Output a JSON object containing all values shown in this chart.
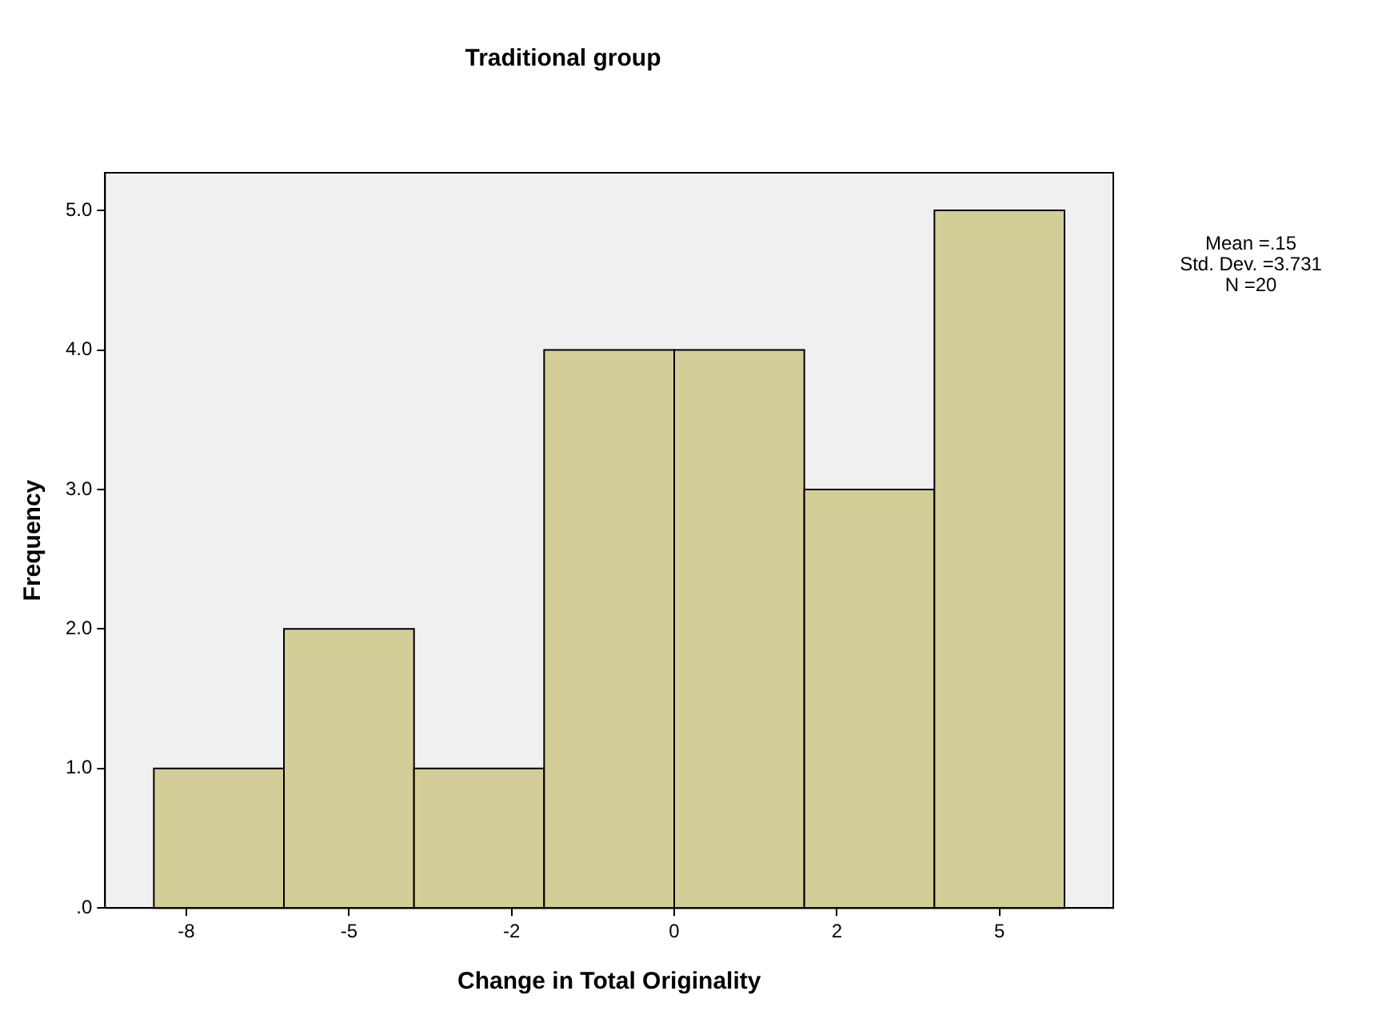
{
  "chart_data": {
    "type": "histogram",
    "title": "Traditional group",
    "xlabel": "Change in Total Originality",
    "ylabel": "Frequency",
    "bins": [
      -8,
      -6,
      -4,
      -2,
      0,
      2,
      4,
      6
    ],
    "values": [
      1,
      2,
      1,
      4,
      4,
      3,
      5
    ],
    "color": "#d3ce97",
    "xlim": [
      -8.75,
      6.75
    ],
    "xticks": [
      {
        "value": -7.5,
        "label": "-8"
      },
      {
        "value": -5,
        "label": "-5"
      },
      {
        "value": -2.5,
        "label": "-2"
      },
      {
        "value": 0,
        "label": "0"
      },
      {
        "value": 2.5,
        "label": "2"
      },
      {
        "value": 5,
        "label": "5"
      }
    ],
    "ylim": [
      0,
      5.27
    ],
    "yticks": [
      {
        "value": 0,
        "label": ".0"
      },
      {
        "value": 1,
        "label": "1.0"
      },
      {
        "value": 2,
        "label": "2.0"
      },
      {
        "value": 3,
        "label": "3.0"
      },
      {
        "value": 4,
        "label": "4.0"
      },
      {
        "value": 5,
        "label": "5.0"
      }
    ],
    "annotations": [
      "Mean =.15",
      "Std. Dev. =3.731",
      "N =20"
    ],
    "grid": false,
    "legend": false
  }
}
